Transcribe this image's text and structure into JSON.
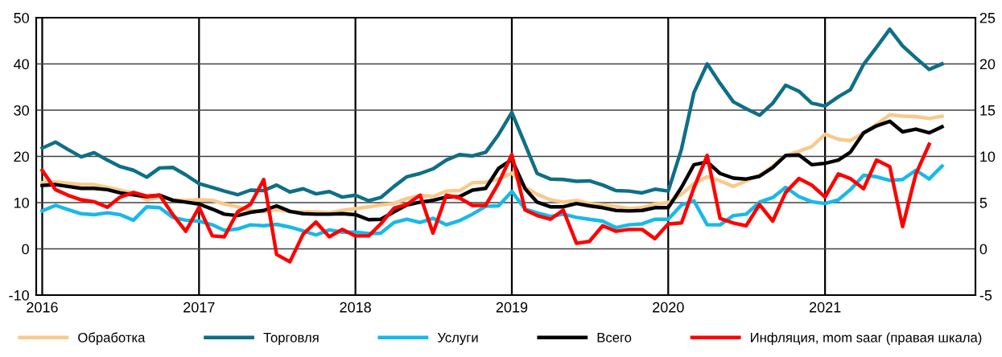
{
  "chart_data": {
    "type": "line",
    "x": [
      "2016-01-15",
      "2016-02-15",
      "2016-03-15",
      "2016-04-15",
      "2016-05-15",
      "2016-06-15",
      "2016-07-15",
      "2016-08-15",
      "2016-09-15",
      "2016-10-15",
      "2016-11-15",
      "2016-12-15",
      "2017-01-15",
      "2017-02-15",
      "2017-03-15",
      "2017-04-15",
      "2017-05-15",
      "2017-06-15",
      "2017-07-15",
      "2017-08-15",
      "2017-09-15",
      "2017-10-15",
      "2017-11-15",
      "2017-12-15",
      "2018-01-15",
      "2018-02-15",
      "2018-03-15",
      "2018-04-15",
      "2018-05-15",
      "2018-06-15",
      "2018-07-15",
      "2018-08-15",
      "2018-09-15",
      "2018-10-15",
      "2018-11-15",
      "2018-12-15",
      "2019-01-15",
      "2019-02-15",
      "2019-03-15",
      "2019-04-15",
      "2019-05-15",
      "2019-06-15",
      "2019-07-15",
      "2019-08-15",
      "2019-09-15",
      "2019-10-15",
      "2019-11-15",
      "2019-12-15",
      "2020-01-15",
      "2020-02-15",
      "2020-03-15",
      "2020-04-15",
      "2020-05-15",
      "2020-06-15",
      "2020-07-15",
      "2020-08-15",
      "2020-09-15",
      "2020-10-15",
      "2020-11-15",
      "2020-12-15",
      "2021-01-15",
      "2021-02-15",
      "2021-03-15",
      "2021-04-15",
      "2021-05-15",
      "2021-06-15",
      "2021-07-15",
      "2021-08-15",
      "2021-09-15",
      "2021-10-15"
    ],
    "series": [
      {
        "name": "Обработка",
        "color": "#f9c98c",
        "values": [
          14.3,
          14.5,
          14.2,
          13.9,
          13.9,
          13.3,
          12.7,
          12.0,
          10.6,
          11.2,
          10.6,
          10.5,
          10.6,
          10.5,
          9.7,
          9.1,
          8.3,
          8.0,
          8.5,
          8.0,
          8.0,
          8.0,
          7.8,
          8.3,
          8.7,
          9.1,
          9.5,
          9.8,
          10.9,
          11.6,
          11.3,
          12.5,
          12.6,
          14.3,
          14.4,
          15.1,
          16.4,
          13.3,
          11.8,
          10.6,
          10.1,
          10.5,
          9.8,
          9.5,
          9.2,
          8.7,
          8.9,
          9.7,
          10.0,
          11.8,
          14.1,
          15.6,
          14.7,
          13.5,
          14.7,
          15.9,
          17.9,
          20.2,
          21.1,
          22.1,
          24.8,
          23.7,
          23.4,
          25.1,
          26.9,
          29.0,
          28.7,
          28.6,
          28.2,
          28.7
        ]
      },
      {
        "name": "Торговля",
        "color": "#0e6f86",
        "values": [
          21.8,
          23.1,
          21.5,
          19.9,
          20.8,
          19.2,
          17.8,
          17.0,
          15.5,
          17.5,
          17.6,
          16.0,
          14.1,
          13.3,
          12.5,
          11.7,
          12.7,
          12.6,
          13.8,
          12.3,
          13.0,
          11.9,
          12.4,
          11.2,
          11.6,
          10.4,
          11.1,
          13.5,
          15.6,
          16.3,
          17.3,
          19.2,
          20.4,
          20.1,
          20.9,
          24.7,
          29.5,
          22.6,
          16.3,
          15.1,
          15.0,
          14.6,
          14.7,
          13.8,
          12.6,
          12.5,
          12.1,
          12.9,
          12.5,
          21.6,
          33.8,
          40.0,
          35.8,
          31.8,
          30.3,
          28.9,
          31.5,
          35.4,
          34.1,
          31.5,
          30.9,
          32.9,
          34.4,
          39.9,
          43.6,
          47.5,
          43.9,
          41.3,
          38.8,
          40.0
        ]
      },
      {
        "name": "Услуги",
        "color": "#18b9e8",
        "values": [
          8.2,
          9.4,
          8.5,
          7.6,
          7.4,
          7.8,
          7.4,
          6.2,
          9.1,
          8.9,
          6.8,
          6.2,
          6.0,
          5.2,
          4.0,
          4.3,
          5.2,
          5.0,
          5.3,
          4.7,
          3.9,
          3.0,
          4.1,
          3.6,
          3.6,
          3.3,
          3.4,
          5.7,
          6.4,
          5.7,
          6.6,
          5.2,
          6.1,
          7.5,
          9.2,
          9.3,
          12.4,
          8.6,
          7.8,
          7.0,
          7.5,
          6.8,
          6.4,
          6.0,
          4.6,
          5.2,
          5.4,
          6.4,
          6.4,
          9.5,
          10.4,
          5.2,
          5.2,
          7.2,
          7.5,
          10.1,
          11.1,
          13.3,
          11.3,
          10.2,
          9.8,
          10.6,
          12.8,
          15.9,
          15.6,
          14.8,
          15.0,
          17.0,
          15.1,
          17.9
        ]
      },
      {
        "name": "Всего",
        "color": "#000000",
        "values": [
          13.7,
          13.9,
          13.5,
          13.1,
          13.1,
          12.8,
          12.1,
          11.7,
          11.3,
          11.6,
          10.5,
          10.1,
          9.7,
          8.6,
          7.5,
          7.2,
          7.9,
          8.3,
          9.3,
          8.1,
          7.6,
          7.5,
          7.5,
          7.6,
          7.4,
          6.3,
          6.4,
          8.0,
          9.5,
          10.1,
          10.5,
          11.2,
          11.3,
          12.7,
          13.1,
          17.4,
          19.3,
          13.0,
          10.1,
          9.1,
          9.1,
          9.8,
          9.3,
          8.9,
          8.3,
          8.2,
          8.3,
          8.9,
          8.9,
          13.3,
          18.2,
          18.8,
          16.3,
          15.3,
          15.1,
          15.7,
          17.6,
          20.2,
          20.3,
          18.2,
          18.5,
          19.2,
          20.9,
          25.1,
          26.6,
          27.6,
          25.3,
          25.9,
          25.1,
          26.4
        ]
      },
      {
        "name": "Инфляция, mom saar (правая шкала)",
        "color": "#ff0000",
        "axis": "y2",
        "values": [
          8.5,
          6.4,
          5.8,
          5.3,
          5.1,
          4.5,
          5.6,
          6.1,
          5.7,
          5.8,
          3.7,
          1.9,
          4.5,
          1.4,
          1.3,
          4.0,
          4.8,
          7.5,
          -0.6,
          -1.4,
          1.6,
          2.9,
          1.3,
          2.1,
          1.4,
          1.4,
          2.7,
          4.4,
          4.8,
          5.8,
          1.7,
          5.8,
          5.5,
          4.7,
          4.7,
          7.1,
          10.2,
          4.2,
          3.6,
          3.2,
          4.2,
          0.6,
          0.8,
          2.5,
          1.9,
          2.1,
          2.1,
          1.1,
          2.7,
          2.8,
          6.6,
          10.1,
          3.3,
          2.8,
          2.5,
          4.8,
          3.0,
          6.1,
          7.6,
          6.9,
          5.6,
          8.1,
          7.6,
          6.5,
          9.6,
          8.9,
          2.4,
          8.1,
          11.3,
          null
        ]
      }
    ],
    "xlim": [
      "2016-01-01",
      "2022-01-01"
    ],
    "xticks": [
      {
        "value": "2016-01-15",
        "label": "2016"
      },
      {
        "value": "2017-01-15",
        "label": "2017"
      },
      {
        "value": "2018-01-15",
        "label": "2018"
      },
      {
        "value": "2019-01-15",
        "label": "2019"
      },
      {
        "value": "2020-01-15",
        "label": "2020"
      },
      {
        "value": "2021-01-15",
        "label": "2021"
      }
    ],
    "ylim": [
      -10,
      50
    ],
    "yticks": [
      -10,
      0,
      10,
      20,
      30,
      40,
      50
    ],
    "y2lim": [
      -5,
      25
    ],
    "y2ticks": [
      -5,
      0,
      5,
      10,
      15,
      20,
      25
    ],
    "grid": true,
    "legend": "bottom",
    "marker": "none",
    "line_style": "solid"
  }
}
